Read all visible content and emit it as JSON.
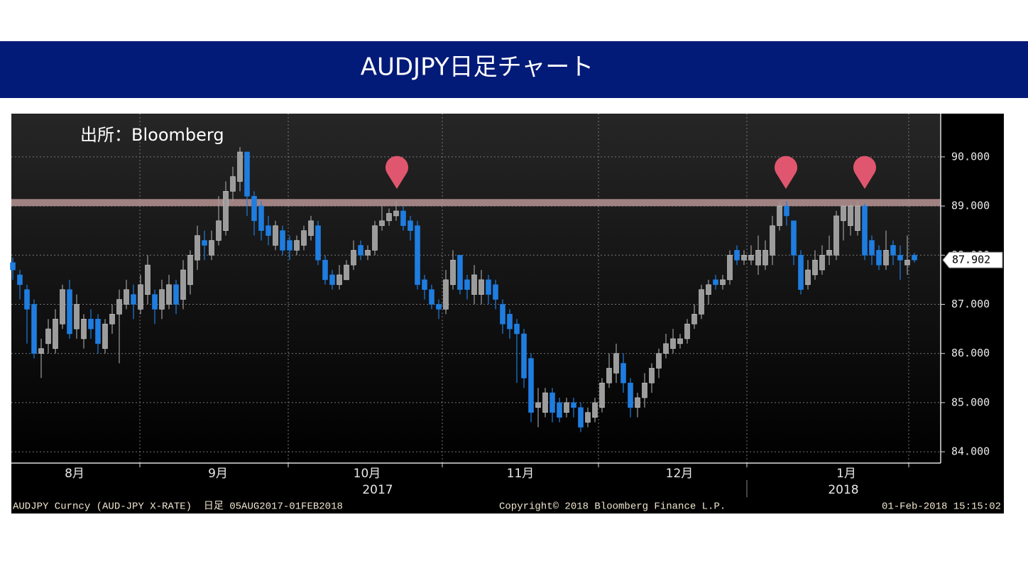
{
  "title": "AUDJPY日足チャート",
  "chart_data": {
    "type": "candlestick",
    "source": "出所：Bloomberg",
    "months": [
      "8月",
      "9月",
      "10月",
      "11月",
      "12月",
      "1月"
    ],
    "years": [
      "2017",
      "2018"
    ],
    "footer_left": "AUDJPY Curncy (AUD-JPY X-RATE)  日足 05AUG2017-01FEB2018",
    "copyright": "Copyright© 2018 Bloomberg Finance L.P.",
    "timestamp": "01-Feb-2018 15:15:02",
    "up_color": "#9c9c9c",
    "down_color": "#1f7de0",
    "resistance_level": 89.07,
    "resistance_color": "#b89494",
    "last_price": 87.902,
    "ylim": [
      83.77,
      90.88
    ],
    "yticks": [
      {
        "value": 84,
        "label": "84.000"
      },
      {
        "value": 85,
        "label": "85.000"
      },
      {
        "value": 86,
        "label": "86.000"
      },
      {
        "value": 87,
        "label": "87.000"
      },
      {
        "value": 88,
        "label": "88.000"
      },
      {
        "value": 89,
        "label": "89.000"
      },
      {
        "value": 90,
        "label": "90.000"
      }
    ],
    "grid": true,
    "open": [
      87.85,
      87.6,
      87.3,
      87.0,
      86.0,
      86.2,
      86.1,
      86.6,
      87.3,
      86.5,
      86.3,
      86.7,
      86.7,
      86.1,
      86.6,
      86.8,
      87.0,
      87.2,
      86.9,
      87.2,
      87.2,
      86.9,
      87.0,
      87.4,
      87.1,
      87.4,
      87.9,
      88.3,
      88.0,
      88.3,
      88.5,
      89.3,
      89.5,
      90.1,
      89.2,
      89.0,
      88.6,
      88.2,
      88.5,
      88.3,
      88.1,
      88.2,
      88.4,
      88.6,
      87.9,
      87.6,
      87.4,
      87.5,
      87.8,
      88.2,
      88.0,
      88.1,
      88.6,
      88.7,
      88.8,
      88.9,
      88.7,
      88.6,
      87.5,
      87.3,
      87.0,
      86.9,
      87.4,
      88.0,
      87.5,
      87.2,
      87.2,
      87.5,
      87.4,
      87.0,
      86.8,
      86.6,
      86.4,
      85.9,
      84.9,
      84.8,
      85.2,
      85.0,
      84.8,
      85.0,
      84.9,
      84.6,
      84.7,
      84.9,
      85.4,
      85.6,
      85.8,
      85.4,
      84.9,
      85.1,
      85.4,
      85.7,
      86.0,
      86.1,
      86.2,
      86.3,
      86.6,
      86.8,
      87.2,
      87.5,
      87.4,
      87.5,
      88.1,
      87.9,
      87.9,
      87.8,
      87.8,
      88.0,
      88.6,
      89.0,
      88.7,
      88.0,
      87.4,
      87.6,
      87.7,
      88.0,
      88.0,
      88.7,
      88.6,
      88.5,
      89.0,
      88.3,
      88.1,
      87.8,
      88.2,
      88.0,
      87.8,
      88.0
    ],
    "high": [
      87.95,
      87.7,
      87.4,
      87.1,
      86.3,
      86.7,
      86.9,
      87.4,
      87.5,
      87.2,
      86.8,
      86.9,
      86.8,
      86.7,
      87.0,
      87.3,
      87.5,
      87.4,
      87.6,
      88.0,
      87.3,
      87.5,
      87.6,
      87.5,
      87.9,
      88.1,
      88.6,
      88.5,
      88.5,
      89.2,
      89.5,
      89.8,
      90.2,
      90.1,
      89.3,
      89.1,
      88.8,
      88.7,
      88.6,
      88.4,
      88.4,
      88.6,
      88.8,
      88.7,
      88.0,
      87.7,
      87.8,
      87.9,
      88.3,
      88.3,
      88.2,
      88.7,
      89.0,
      88.95,
      89.1,
      89.0,
      88.8,
      88.7,
      87.6,
      87.4,
      87.1,
      87.7,
      88.1,
      88.0,
      87.6,
      87.8,
      87.7,
      87.6,
      87.5,
      87.1,
      86.9,
      86.7,
      86.5,
      86.0,
      85.3,
      85.3,
      85.3,
      85.1,
      85.1,
      85.1,
      85.0,
      84.9,
      85.1,
      85.5,
      86.0,
      86.2,
      86.0,
      85.5,
      85.2,
      85.6,
      85.8,
      86.1,
      86.4,
      86.5,
      86.4,
      86.7,
      87.0,
      87.4,
      87.5,
      87.6,
      87.6,
      88.1,
      88.2,
      88.1,
      88.2,
      88.4,
      88.3,
      88.8,
      89.1,
      89.1,
      88.7,
      88.1,
      87.9,
      88.1,
      88.2,
      88.4,
      88.9,
      89.0,
      89.05,
      89.1,
      89.05,
      88.4,
      88.2,
      88.5,
      88.3,
      88.2,
      88.4,
      88.05
    ],
    "low": [
      87.5,
      87.1,
      86.2,
      85.9,
      85.5,
      86.0,
      86.0,
      86.5,
      86.3,
      86.3,
      86.1,
      86.3,
      86.0,
      86.0,
      86.4,
      85.8,
      86.9,
      86.7,
      86.8,
      87.0,
      86.6,
      86.7,
      86.9,
      86.8,
      86.9,
      87.2,
      87.7,
      87.9,
      87.9,
      88.2,
      88.4,
      89.1,
      89.3,
      88.8,
      88.4,
      88.3,
      88.2,
      88.1,
      88.0,
      87.9,
      88.0,
      88.1,
      88.3,
      87.8,
      87.4,
      87.3,
      87.3,
      87.5,
      87.7,
      87.9,
      87.9,
      88.0,
      88.5,
      88.6,
      88.7,
      88.5,
      88.3,
      87.3,
      87.1,
      86.9,
      86.7,
      86.8,
      87.3,
      87.2,
      87.1,
      87.0,
      87.0,
      87.0,
      86.9,
      86.4,
      86.3,
      85.4,
      85.3,
      84.6,
      84.5,
      84.7,
      84.6,
      84.6,
      84.7,
      84.7,
      84.4,
      84.5,
      84.6,
      84.8,
      85.3,
      85.4,
      85.2,
      84.7,
      84.7,
      84.9,
      85.2,
      85.5,
      85.9,
      86.0,
      86.1,
      86.2,
      86.5,
      86.7,
      87.0,
      87.3,
      87.3,
      87.4,
      87.8,
      87.8,
      87.8,
      87.6,
      87.7,
      87.8,
      88.5,
      88.6,
      87.8,
      87.2,
      87.3,
      87.5,
      87.6,
      87.8,
      87.9,
      88.3,
      88.4,
      88.4,
      87.9,
      87.8,
      87.7,
      87.7,
      87.8,
      87.5,
      87.6,
      87.85
    ],
    "close": [
      87.7,
      87.4,
      86.9,
      86.0,
      86.1,
      86.5,
      86.7,
      87.3,
      86.4,
      87.0,
      86.7,
      86.5,
      86.2,
      86.6,
      86.8,
      87.1,
      87.3,
      87.0,
      87.4,
      87.8,
      86.9,
      87.3,
      87.4,
      87.0,
      87.7,
      88.0,
      88.4,
      88.2,
      88.3,
      88.7,
      89.3,
      89.6,
      90.1,
      89.2,
      88.7,
      88.5,
      88.4,
      88.6,
      88.1,
      88.1,
      88.3,
      88.5,
      88.7,
      87.9,
      87.5,
      87.4,
      87.6,
      87.8,
      88.1,
      88.0,
      88.1,
      88.6,
      88.7,
      88.85,
      88.9,
      88.6,
      88.5,
      87.4,
      87.3,
      87.0,
      86.9,
      87.5,
      87.9,
      87.3,
      87.3,
      87.6,
      87.5,
      87.2,
      87.1,
      86.6,
      86.5,
      86.4,
      85.5,
      84.8,
      85.0,
      85.2,
      84.8,
      84.7,
      85.0,
      84.9,
      84.5,
      84.8,
      85.0,
      85.4,
      85.7,
      86.0,
      85.4,
      84.9,
      85.1,
      85.4,
      85.7,
      86.0,
      86.2,
      86.3,
      86.3,
      86.6,
      86.8,
      87.3,
      87.4,
      87.4,
      87.5,
      88.0,
      87.9,
      88.0,
      88.0,
      88.1,
      88.1,
      88.6,
      89.0,
      88.8,
      88.0,
      87.3,
      87.7,
      87.9,
      88.0,
      88.1,
      88.8,
      89.0,
      89.0,
      89.0,
      88.0,
      88.0,
      87.8,
      88.1,
      88.0,
      87.9,
      87.9,
      87.902
    ]
  }
}
